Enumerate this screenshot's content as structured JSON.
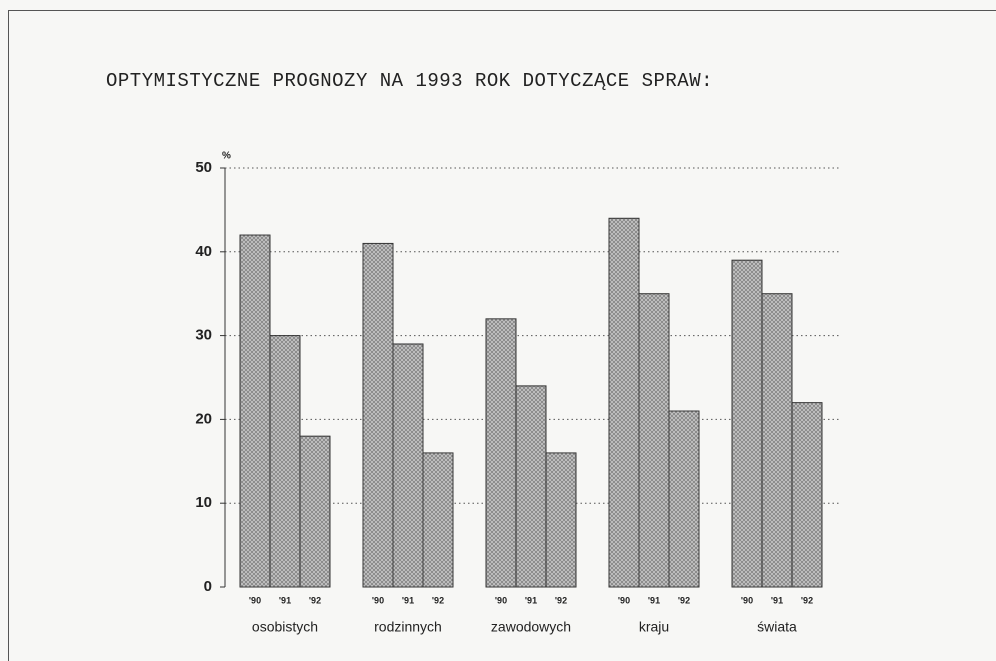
{
  "chart_data": {
    "type": "bar",
    "title": "OPTYMISTYCZNE PROGNOZY NA 1993 ROK DOTYCZĄCE SPRAW:",
    "ylabel": "%",
    "categories": [
      "osobistych",
      "rodzinnych",
      "zawodowych",
      "kraju",
      "świata"
    ],
    "series": [
      {
        "name": "'90",
        "color": "#8c8c8c",
        "values": [
          42,
          41,
          32,
          44,
          39
        ]
      },
      {
        "name": "'91",
        "color": "#8c8c8c",
        "values": [
          30,
          29,
          24,
          35,
          35
        ]
      },
      {
        "name": "'92",
        "color": "#8c8c8c",
        "values": [
          18,
          16,
          16,
          21,
          22
        ]
      }
    ],
    "ylim": [
      0,
      50
    ],
    "yticks": [
      0,
      10,
      20,
      30,
      40,
      50
    ],
    "grid": true
  }
}
